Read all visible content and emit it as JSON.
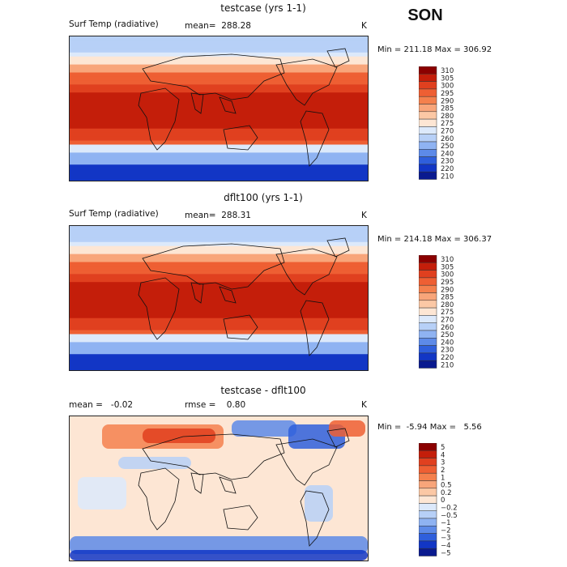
{
  "season": "SON",
  "panels": [
    {
      "title": "testcase (yrs 1-1)",
      "field_label": "Surf Temp (radiative)",
      "stat_text": "mean=  288.28",
      "units": "K",
      "minmax": "Min = 211.18 Max = 306.92",
      "levels": [
        "310",
        "305",
        "300",
        "295",
        "290",
        "285",
        "280",
        "275",
        "270",
        "260",
        "250",
        "240",
        "230",
        "220",
        "210"
      ],
      "colors": [
        "#8b0000",
        "#c41e0a",
        "#e0401f",
        "#ee5f33",
        "#f4804d",
        "#f8a57a",
        "#fbc8a5",
        "#fde6d4",
        "#dce9fb",
        "#b7d0f7",
        "#8fb3f2",
        "#5d8ae8",
        "#2f5fdc",
        "#1236c5",
        "#0a1a8f"
      ]
    },
    {
      "title": "dflt100 (yrs 1-1)",
      "field_label": "Surf Temp (radiative)",
      "stat_text": "mean=  288.31",
      "units": "K",
      "minmax": "Min = 214.18 Max = 306.37",
      "levels": [
        "310",
        "305",
        "300",
        "295",
        "290",
        "285",
        "280",
        "275",
        "270",
        "260",
        "250",
        "240",
        "230",
        "220",
        "210"
      ],
      "colors": [
        "#8b0000",
        "#c41e0a",
        "#e0401f",
        "#ee5f33",
        "#f4804d",
        "#f8a57a",
        "#fbc8a5",
        "#fde6d4",
        "#dce9fb",
        "#b7d0f7",
        "#8fb3f2",
        "#5d8ae8",
        "#2f5fdc",
        "#1236c5",
        "#0a1a8f"
      ]
    },
    {
      "title": "testcase - dflt100",
      "stat_text": "mean =   -0.02",
      "stat_text2": "rmse =    0.80",
      "units": "K",
      "minmax": "Min =  -5.94 Max =   5.56",
      "levels": [
        "5",
        "4",
        "3",
        "2",
        "1",
        "0.5",
        "0.2",
        "0",
        "−0.2",
        "−0.5",
        "−1",
        "−2",
        "−3",
        "−4",
        "−5"
      ],
      "colors": [
        "#8b0000",
        "#c41e0a",
        "#e0401f",
        "#ee5f33",
        "#f4804d",
        "#f8a57a",
        "#fbc8a5",
        "#fde6d4",
        "#dce9fb",
        "#b7d0f7",
        "#8fb3f2",
        "#5d8ae8",
        "#2f5fdc",
        "#1236c5",
        "#0a1a8f"
      ]
    }
  ],
  "chart_data": [
    {
      "type": "heatmap",
      "title": "testcase (yrs 1-1)",
      "variable": "Surf Temp (radiative)",
      "units": "K",
      "mean": 288.28,
      "min": 211.18,
      "max": 306.92,
      "levels": [
        310,
        305,
        300,
        295,
        290,
        285,
        280,
        275,
        270,
        260,
        250,
        240,
        230,
        220,
        210
      ]
    },
    {
      "type": "heatmap",
      "title": "dflt100 (yrs 1-1)",
      "variable": "Surf Temp (radiative)",
      "units": "K",
      "mean": 288.31,
      "min": 214.18,
      "max": 306.37,
      "levels": [
        310,
        305,
        300,
        295,
        290,
        285,
        280,
        275,
        270,
        260,
        250,
        240,
        230,
        220,
        210
      ]
    },
    {
      "type": "heatmap",
      "title": "testcase - dflt100",
      "units": "K",
      "mean": -0.02,
      "rmse": 0.8,
      "min": -5.94,
      "max": 5.56,
      "levels": [
        5,
        4,
        3,
        2,
        1,
        0.5,
        0.2,
        0,
        -0.2,
        -0.5,
        -1,
        -2,
        -3,
        -4,
        -5
      ]
    }
  ]
}
